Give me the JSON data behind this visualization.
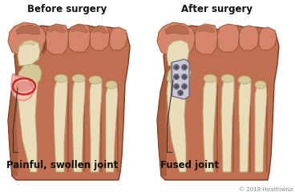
{
  "title_left": "Before surgery",
  "title_right": "After surgery",
  "label_left": "Painful, swollen joint",
  "label_right": "Fused joint",
  "copyright": "© 2018 Healthwise",
  "bg_color": "#ffffff",
  "skin_light": "#d4856a",
  "skin_mid": "#c07050",
  "skin_dark": "#9a5535",
  "skin_darker": "#7a3820",
  "bone_color": "#e8ddb8",
  "bone_mid": "#d4c89a",
  "bone_dark": "#b8a878",
  "infl_red": "#cc3030",
  "infl_pink": "#e88080",
  "infl_light": "#f5c0b0",
  "plate_color": "#a8a8b8",
  "plate_light": "#c8c8d8",
  "plate_dark": "#707080",
  "screw_color": "#606070",
  "line_color": "#333333",
  "text_color": "#111111",
  "title_fontsize": 8.5,
  "label_fontsize": 8.5,
  "copyright_fontsize": 5.0
}
